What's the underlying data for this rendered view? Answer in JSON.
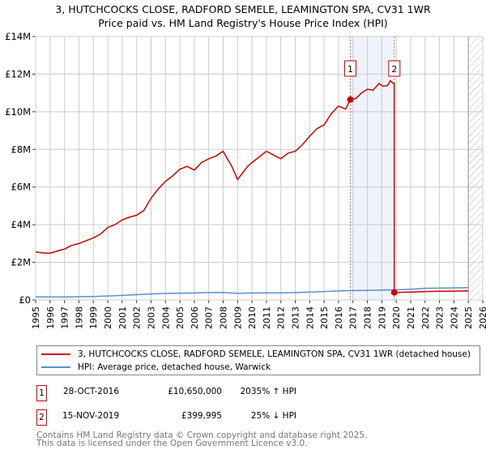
{
  "title": "3, HUTCHCOCKS CLOSE, RADFORD SEMELE, LEAMINGTON SPA, CV31 1WR",
  "subtitle": "Price paid vs. HM Land Registry's House Price Index (HPI)",
  "chart_data": {
    "type": "line",
    "xlim": [
      1995,
      2026
    ],
    "ylim": [
      0,
      14000000
    ],
    "x_ticks": [
      "1995",
      "1996",
      "1997",
      "1998",
      "1999",
      "2000",
      "2001",
      "2002",
      "2003",
      "2004",
      "2005",
      "2006",
      "2007",
      "2008",
      "2009",
      "2010",
      "2011",
      "2012",
      "2013",
      "2014",
      "2015",
      "2016",
      "2017",
      "2018",
      "2019",
      "2020",
      "2021",
      "2022",
      "2023",
      "2024",
      "2025",
      "2026"
    ],
    "y_ticks": [
      {
        "v": 0,
        "label": "£0"
      },
      {
        "v": 2000000,
        "label": "£2M"
      },
      {
        "v": 4000000,
        "label": "£4M"
      },
      {
        "v": 6000000,
        "label": "£6M"
      },
      {
        "v": 8000000,
        "label": "£8M"
      },
      {
        "v": 10000000,
        "label": "£10M"
      },
      {
        "v": 12000000,
        "label": "£12M"
      },
      {
        "v": 14000000,
        "label": "£14M"
      }
    ],
    "grid": true,
    "shaded_range": [
      2016.82,
      2019.87
    ],
    "forecast_hatch_from": 2025.0,
    "series": [
      {
        "name": "3, HUTCHCOCKS CLOSE, RADFORD SEMELE, LEAMINGTON SPA, CV31 1WR (detached house)",
        "color": "#cc0000",
        "x": [
          1995,
          1995.5,
          1996,
          1996.5,
          1997,
          1997.5,
          1998,
          1998.5,
          1999,
          1999.5,
          2000,
          2000.5,
          2001,
          2001.5,
          2002,
          2002.5,
          2003,
          2003.5,
          2004,
          2004.5,
          2005,
          2005.5,
          2006,
          2006.5,
          2007,
          2007.5,
          2008,
          2008.3,
          2008.6,
          2009,
          2009.3,
          2009.7,
          2010,
          2010.5,
          2011,
          2011.5,
          2012,
          2012.5,
          2013,
          2013.5,
          2014,
          2014.5,
          2015,
          2015.5,
          2016,
          2016.5,
          2016.82,
          2017.2,
          2017.6,
          2018,
          2018.4,
          2018.8,
          2019.1,
          2019.4,
          2019.6,
          2019.8,
          2019.86,
          2019.87,
          2020.5,
          2021,
          2021.5,
          2022,
          2023,
          2024,
          2025
        ],
        "y": [
          2550000,
          2500000,
          2480000,
          2600000,
          2700000,
          2900000,
          3000000,
          3150000,
          3300000,
          3500000,
          3850000,
          4000000,
          4250000,
          4400000,
          4500000,
          4750000,
          5400000,
          5900000,
          6300000,
          6600000,
          6950000,
          7100000,
          6900000,
          7300000,
          7500000,
          7650000,
          7900000,
          7500000,
          7100000,
          6400000,
          6700000,
          7100000,
          7300000,
          7600000,
          7900000,
          7700000,
          7500000,
          7800000,
          7900000,
          8250000,
          8700000,
          9100000,
          9300000,
          9900000,
          10300000,
          10150000,
          10650000,
          10700000,
          11000000,
          11200000,
          11150000,
          11500000,
          11350000,
          11400000,
          11650000,
          11500000,
          11500000,
          399995,
          410000,
          420000,
          430000,
          450000,
          460000,
          470000,
          480000
        ]
      },
      {
        "name": "HPI: Average price, detached house, Warwick",
        "color": "#5b8fd0",
        "x": [
          1995,
          1997,
          1999,
          2000,
          2001,
          2002,
          2003,
          2004,
          2005,
          2006,
          2007,
          2008,
          2009,
          2010,
          2011,
          2012,
          2013,
          2014,
          2015,
          2016,
          2017,
          2018,
          2019,
          2020,
          2021,
          2022,
          2023,
          2024,
          2025
        ],
        "y": [
          160000,
          165000,
          180000,
          210000,
          240000,
          280000,
          320000,
          350000,
          360000,
          370000,
          390000,
          400000,
          350000,
          370000,
          375000,
          380000,
          390000,
          420000,
          450000,
          480000,
          500000,
          510000,
          530000,
          540000,
          570000,
          620000,
          630000,
          640000,
          660000
        ]
      }
    ],
    "sales": [
      {
        "label": "1",
        "x": 2016.82,
        "y": 10650000
      },
      {
        "label": "2",
        "x": 2019.87,
        "y": 399995
      }
    ]
  },
  "legend": [
    {
      "label": "3, HUTCHCOCKS CLOSE, RADFORD SEMELE, LEAMINGTON SPA, CV31 1WR (detached house)",
      "color": "#cc0000"
    },
    {
      "label": "HPI: Average price, detached house, Warwick",
      "color": "#5b8fd0"
    }
  ],
  "transactions": [
    {
      "num": "1",
      "date": "28-OCT-2016",
      "price": "£10,650,000",
      "hpi": "2035% ↑ HPI"
    },
    {
      "num": "2",
      "date": "15-NOV-2019",
      "price": "£399,995",
      "hpi": "25% ↓ HPI"
    }
  ],
  "footer": [
    "Contains HM Land Registry data © Crown copyright and database right 2025.",
    "This data is licensed under the Open Government Licence v3.0."
  ]
}
